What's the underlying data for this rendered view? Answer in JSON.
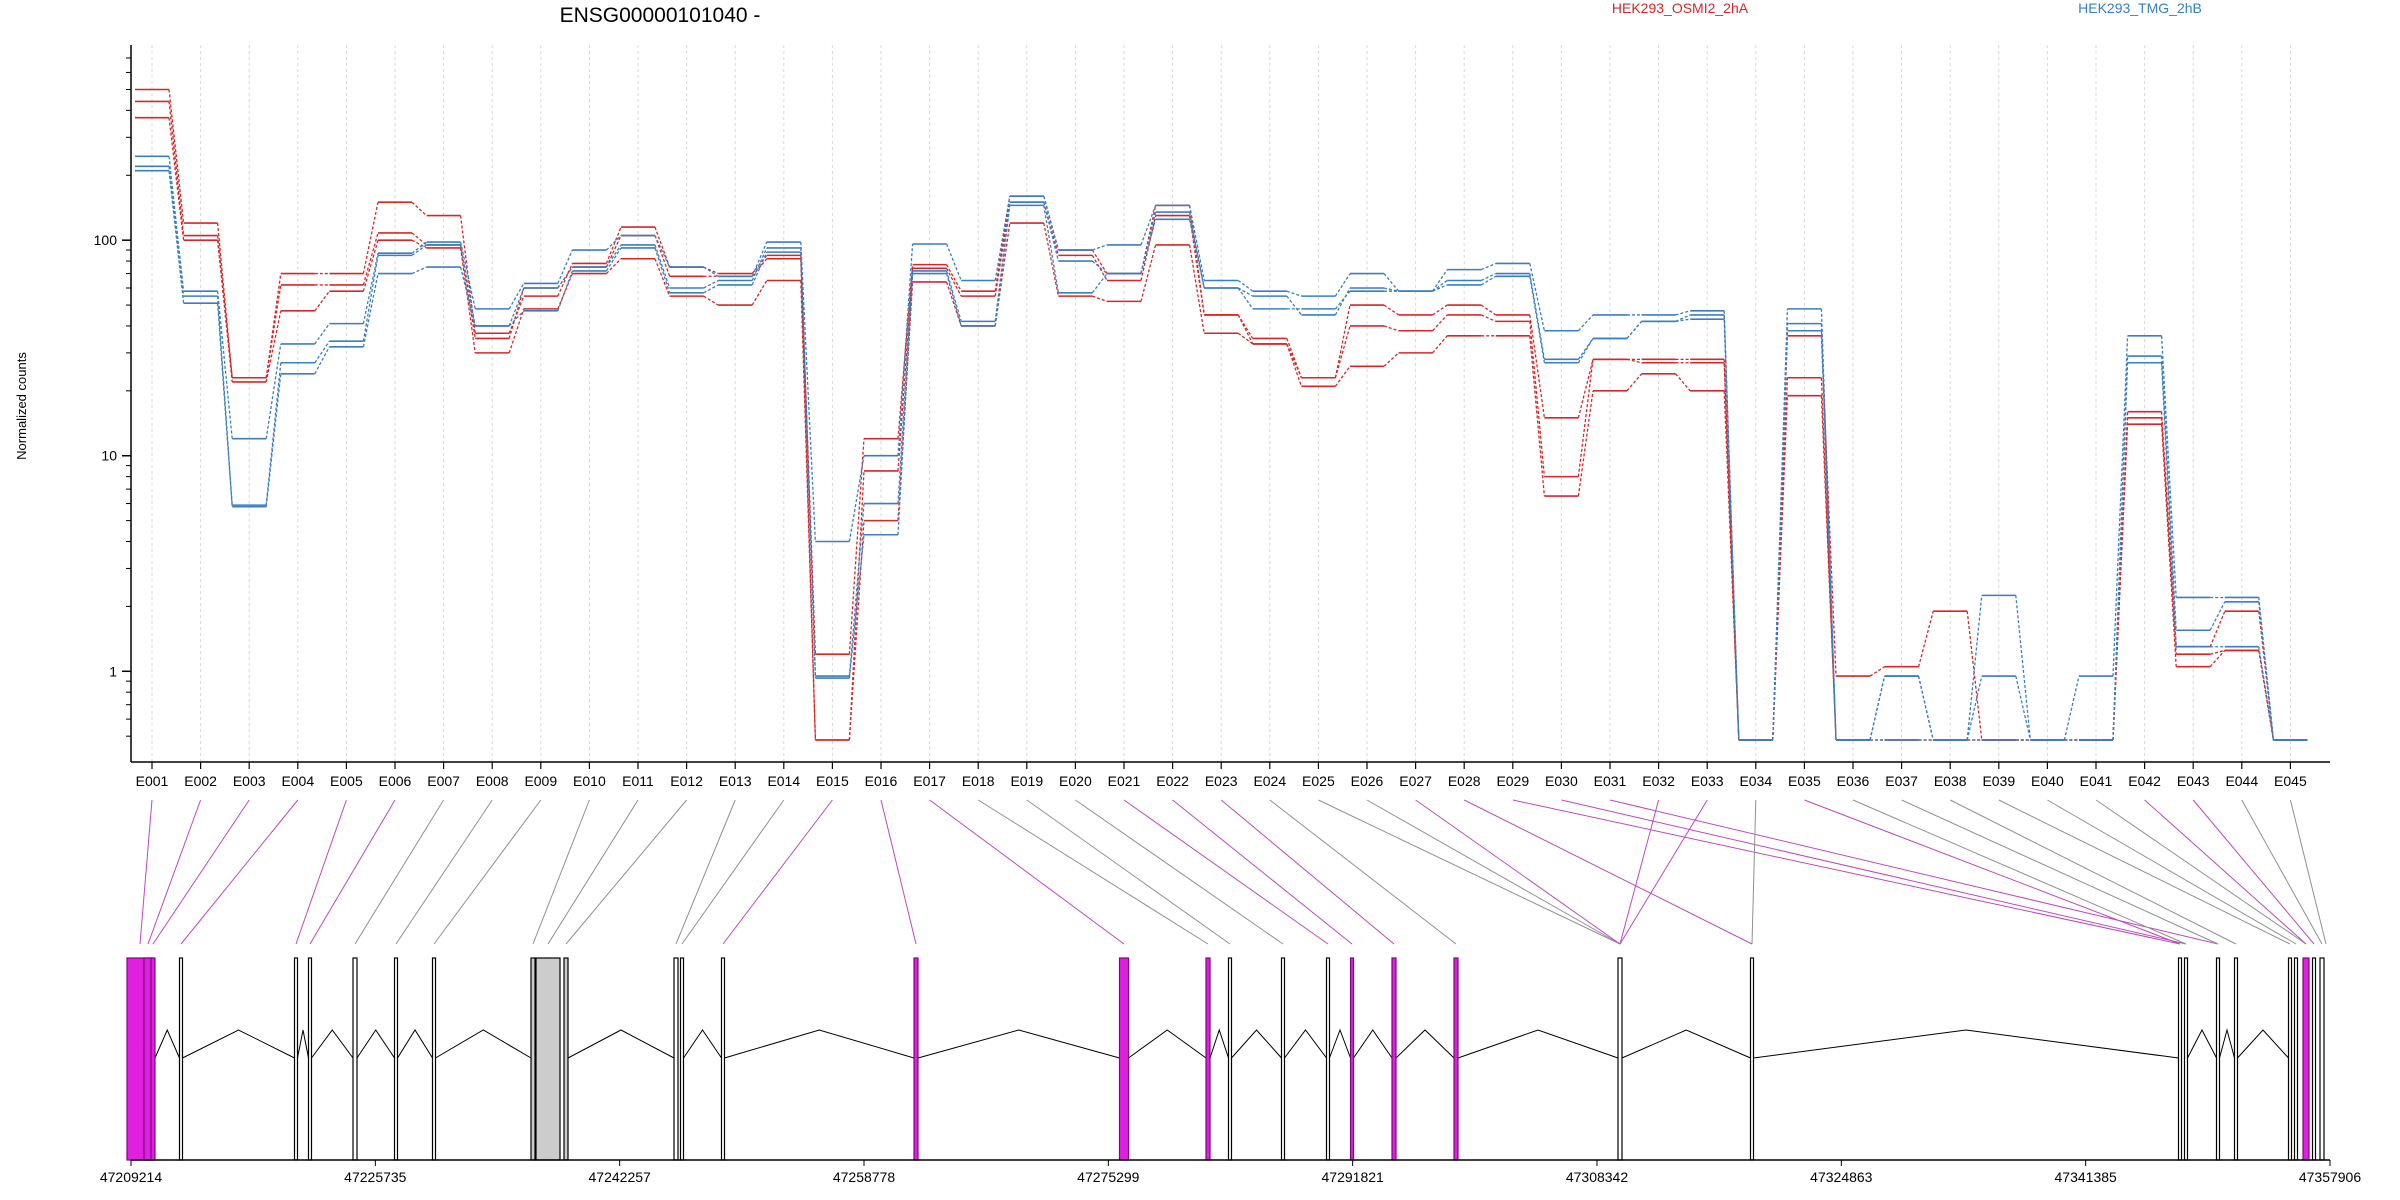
{
  "chart_data": {
    "type": "line",
    "title": "ENSG00000101040 -",
    "ylabel": "Normalized counts",
    "yscale": "log",
    "ylim": [
      0.48,
      700
    ],
    "yticks": [
      "1",
      "10",
      "100"
    ],
    "categories": [
      "E001",
      "E002",
      "E003",
      "E004",
      "E005",
      "E006",
      "E007",
      "E008",
      "E009",
      "E010",
      "E011",
      "E012",
      "E013",
      "E014",
      "E015",
      "E016",
      "E017",
      "E018",
      "E019",
      "E020",
      "E021",
      "E022",
      "E023",
      "E024",
      "E025",
      "E026",
      "E027",
      "E028",
      "E029",
      "E030",
      "E031",
      "E032",
      "E033",
      "E034",
      "E035",
      "E036",
      "E037",
      "E038",
      "E039",
      "E040",
      "E041",
      "E042",
      "E043",
      "E044",
      "E045"
    ],
    "legend": [
      {
        "label": "HEK293_OSMI2_2hA",
        "color": "#d62728"
      },
      {
        "label": "HEK293_TMG_2hB",
        "color": "#3a7ebf"
      }
    ],
    "series": [
      {
        "group": 0,
        "values": [
          500,
          120,
          23,
          70,
          70,
          150,
          130,
          37,
          55,
          78,
          115,
          75,
          70,
          85,
          1.2,
          12,
          77,
          58,
          160,
          90,
          70,
          145,
          45,
          35,
          23,
          50,
          45,
          50,
          45,
          15,
          28,
          28,
          28,
          0.48,
          36,
          0.95,
          1.05,
          1.9,
          0.48,
          0.48,
          0.48,
          16,
          1.3,
          1.9,
          0.48
        ]
      },
      {
        "group": 0,
        "values": [
          440,
          105,
          23,
          62,
          62,
          108,
          95,
          35,
          60,
          75,
          105,
          68,
          68,
          82,
          0.48,
          8.5,
          74,
          55,
          150,
          85,
          65,
          130,
          45,
          33,
          23,
          40,
          38,
          45,
          42,
          8,
          28,
          27,
          27,
          0.48,
          23,
          0.48,
          0.48,
          0.48,
          0.48,
          0.48,
          0.48,
          15,
          1.2,
          1.25,
          0.48
        ]
      },
      {
        "group": 0,
        "values": [
          370,
          100,
          22,
          47,
          58,
          100,
          92,
          30,
          48,
          70,
          82,
          55,
          50,
          65,
          0.48,
          5,
          64,
          40,
          120,
          55,
          52,
          95,
          37,
          33,
          21,
          26,
          30,
          36,
          36,
          6.5,
          20,
          24,
          20,
          0.48,
          19,
          0.48,
          0.48,
          0.48,
          0.48,
          0.48,
          0.48,
          14,
          1.05,
          1.25,
          0.48
        ]
      },
      {
        "group": 1,
        "values": [
          245,
          58,
          12,
          33,
          41,
          87,
          98,
          48,
          63,
          90,
          105,
          75,
          68,
          98,
          4,
          10,
          96,
          65,
          160,
          90,
          95,
          145,
          65,
          58,
          55,
          70,
          58,
          73,
          78,
          38,
          45,
          45,
          47,
          0.48,
          48,
          0.48,
          0.95,
          0.48,
          2.25,
          0.48,
          0.95,
          36,
          2.2,
          2.2,
          0.48
        ]
      },
      {
        "group": 1,
        "values": [
          220,
          55,
          5.9,
          27,
          34,
          85,
          95,
          40,
          60,
          75,
          95,
          60,
          65,
          92,
          0.95,
          6,
          72,
          42,
          150,
          80,
          70,
          135,
          60,
          55,
          45,
          60,
          58,
          65,
          70,
          28,
          35,
          42,
          45,
          0.48,
          41,
          0.48,
          0.95,
          0.48,
          0.95,
          0.48,
          0.48,
          29,
          1.55,
          2.1,
          0.48
        ]
      },
      {
        "group": 1,
        "values": [
          210,
          51,
          5.8,
          24,
          32,
          70,
          75,
          40,
          47,
          72,
          92,
          57,
          62,
          88,
          0.93,
          4.3,
          70,
          40,
          145,
          57,
          70,
          125,
          60,
          48,
          48,
          58,
          58,
          62,
          68,
          27,
          35,
          42,
          43,
          0.48,
          38,
          0.48,
          0.48,
          0.48,
          0.48,
          0.48,
          0.48,
          27,
          1.3,
          1.3,
          0.48
        ]
      }
    ],
    "genome": {
      "ticks": [
        "47209214",
        "47225735",
        "47242257",
        "47258778",
        "47275299",
        "47291821",
        "47308342",
        "47324863",
        "47341385",
        "47357906"
      ]
    }
  },
  "colors": {
    "group0": "#d62728",
    "group1": "#3a7ebf",
    "exon_link_magenta": "#c048c0",
    "exon_link_gray": "#909090",
    "exon_magenta": "#e020e0",
    "exon_gray": "#cccccc"
  }
}
